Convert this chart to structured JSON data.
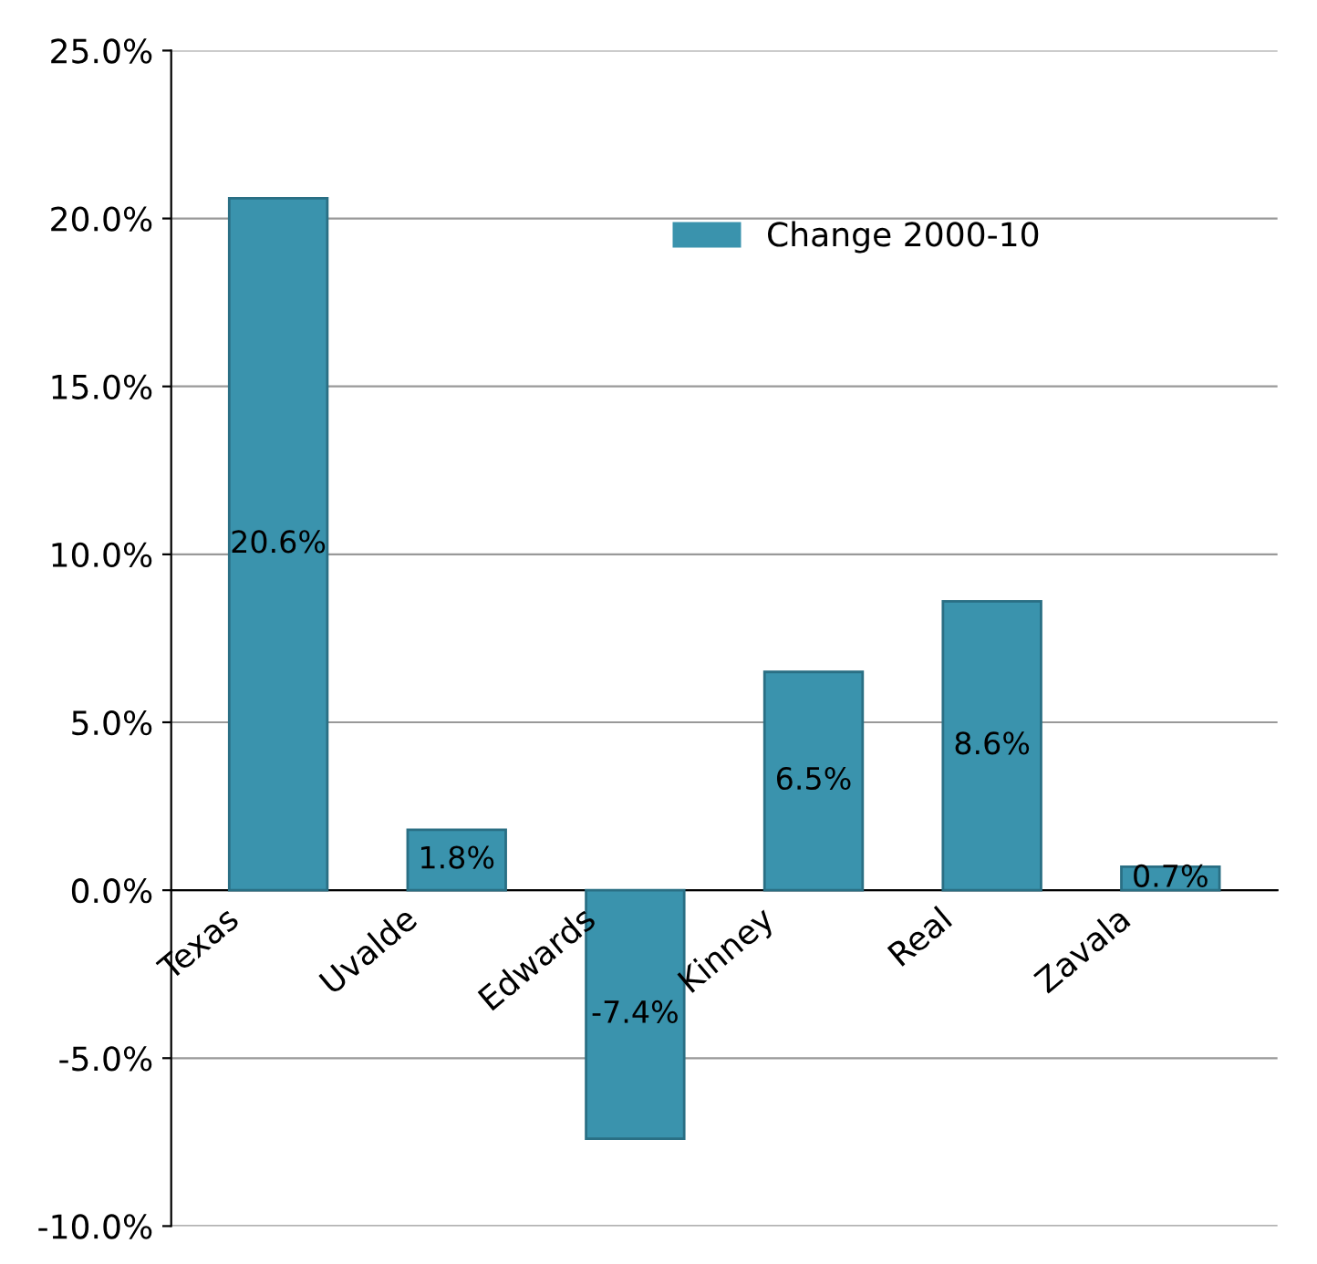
{
  "chart_data": {
    "type": "bar",
    "categories": [
      "Texas",
      "Uvalde",
      "Edwards",
      "Kinney",
      "Real",
      "Zavala"
    ],
    "series": [
      {
        "name": "Change 2000-10",
        "color": "#3a93ad",
        "values": [
          20.6,
          1.8,
          -7.4,
          6.5,
          8.6,
          0.7
        ],
        "value_labels": [
          "20.6%",
          "1.8%",
          "-7.4%",
          "6.5%",
          "8.6%",
          "0.7%"
        ]
      }
    ],
    "ylim": [
      -10,
      25
    ],
    "yticks": [
      {
        "value": -10,
        "label": "-10.0%"
      },
      {
        "value": -5,
        "label": "-5.0%"
      },
      {
        "value": 0,
        "label": "0.0%"
      },
      {
        "value": 5,
        "label": "5.0%"
      },
      {
        "value": 10,
        "label": "10.0%"
      },
      {
        "value": 15,
        "label": "15.0%"
      },
      {
        "value": 20,
        "label": "20.0%"
      },
      {
        "value": 25,
        "label": "25.0%"
      }
    ],
    "grid": "y",
    "legend": "top"
  }
}
